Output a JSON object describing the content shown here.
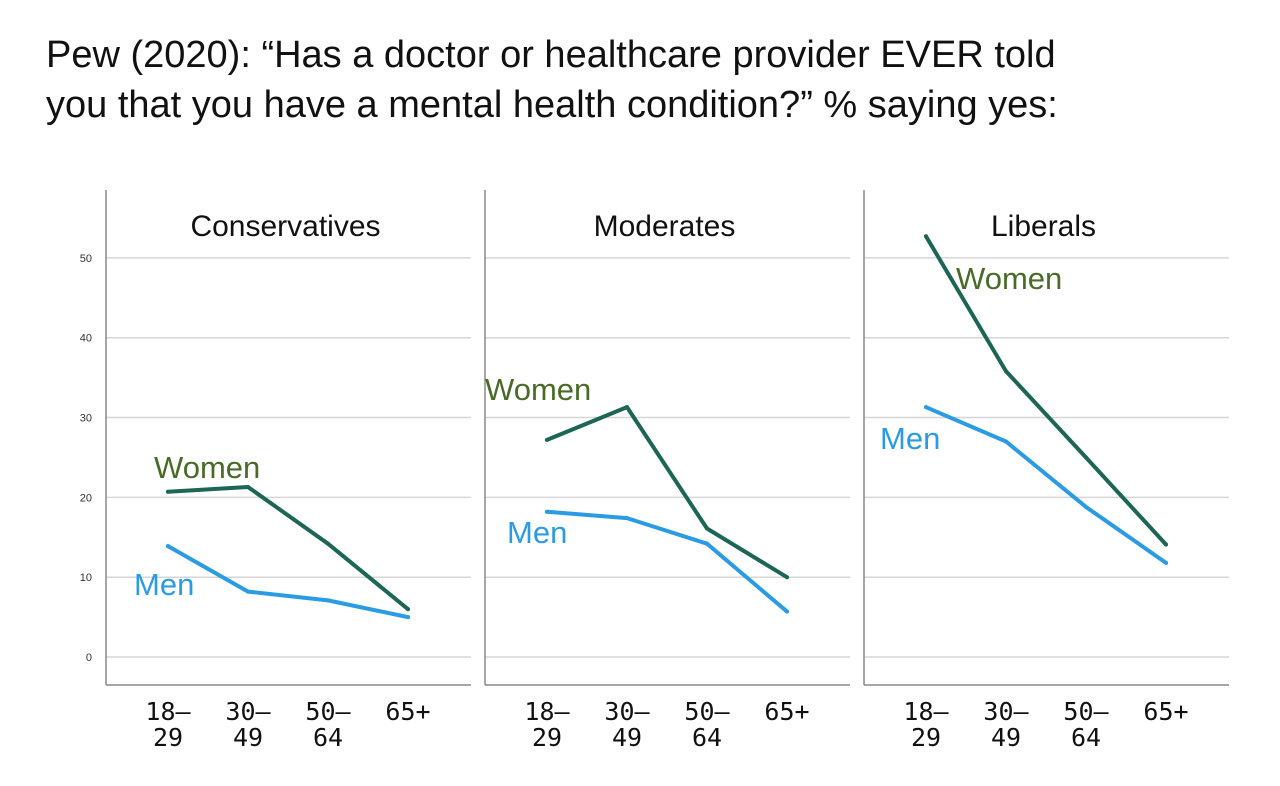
{
  "title": {
    "line1": "Pew (2020): “Has a doctor or healthcare provider EVER told",
    "line2": "you that you have a mental health condition?” % saying yes:"
  },
  "colors": {
    "women": "#1d6655",
    "men": "#2b9be6",
    "women_label": "#4a6b28",
    "men_label": "#2b9be6",
    "grid": "#d6d6d6",
    "axis": "#888888"
  },
  "chart_data": {
    "type": "line",
    "categories": [
      "18–\n29",
      "30–\n49",
      "50–\n64",
      "65+"
    ],
    "yticks": [
      0,
      10,
      20,
      30,
      40,
      50
    ],
    "ylim": [
      -3.5,
      58.5
    ],
    "grid": true,
    "panels": [
      {
        "title": "Conservatives",
        "series": [
          {
            "name": "Women",
            "values": [
              20.7,
              21.3,
              14.2,
              6.0
            ]
          },
          {
            "name": "Men",
            "values": [
              13.9,
              8.2,
              7.1,
              5.0
            ]
          }
        ]
      },
      {
        "title": "Moderates",
        "series": [
          {
            "name": "Women",
            "values": [
              27.2,
              31.3,
              16.1,
              10.0
            ]
          },
          {
            "name": "Men",
            "values": [
              18.2,
              17.4,
              14.2,
              5.7
            ]
          }
        ]
      },
      {
        "title": "Liberals",
        "series": [
          {
            "name": "Women",
            "values": [
              52.7,
              35.8,
              25.0,
              14.1
            ]
          },
          {
            "name": "Men",
            "values": [
              31.3,
              27.0,
              18.8,
              11.8
            ]
          }
        ]
      }
    ]
  }
}
